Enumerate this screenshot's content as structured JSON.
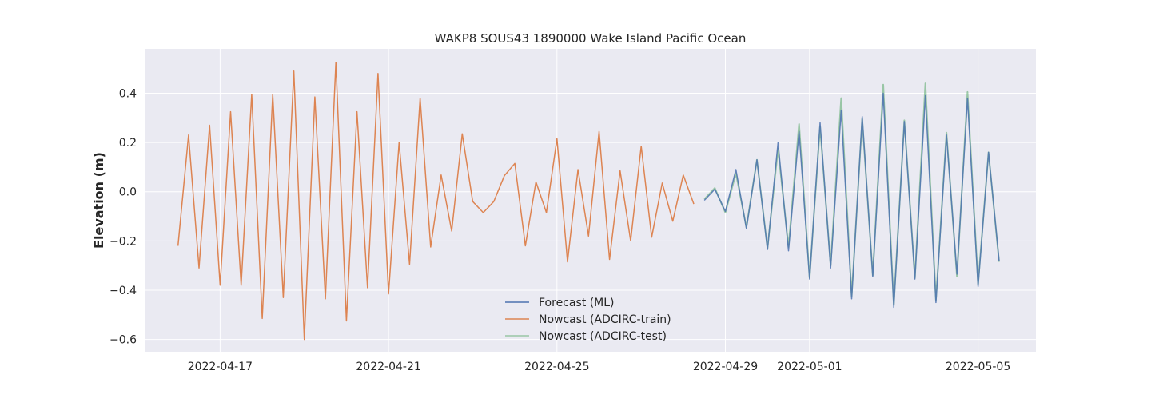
{
  "chart_data": {
    "type": "line",
    "title": "WAKP8 SOUS43 1890000 Wake Island Pacific Ocean",
    "xlabel": "",
    "ylabel": "Elevation (m)",
    "xlim": [
      "2022-04-15T05:00",
      "2022-05-06T09:00"
    ],
    "ylim": [
      -0.65,
      0.58
    ],
    "x_ticks": [
      "2022-04-17",
      "2022-04-21",
      "2022-04-25",
      "2022-04-29",
      "2022-05-01",
      "2022-05-05"
    ],
    "y_ticks": [
      -0.6,
      -0.4,
      -0.2,
      0.0,
      0.2,
      0.4
    ],
    "y_tick_labels": [
      "−0.6",
      "−0.4",
      "−0.2",
      "0.0",
      "0.2",
      "0.4"
    ],
    "grid": true,
    "legend_position": "bottom-center",
    "background_color": "#eaeaf2",
    "series": [
      {
        "name": "Nowcast (ADCIRC-train)",
        "color": "#dd8452",
        "x_start": "2022-04-16T00:00",
        "x_step_hours": 6,
        "y": [
          -0.22,
          0.23,
          -0.31,
          0.27,
          -0.38,
          0.325,
          -0.38,
          0.395,
          -0.515,
          0.395,
          -0.43,
          0.49,
          -0.6,
          0.385,
          -0.435,
          0.525,
          -0.525,
          0.325,
          -0.39,
          0.48,
          -0.415,
          0.2,
          -0.295,
          0.38,
          -0.225,
          0.068,
          -0.16,
          0.235,
          -0.04,
          -0.085,
          -0.04,
          0.065,
          0.115,
          -0.22,
          0.04,
          -0.085,
          0.215,
          -0.285,
          0.09,
          -0.18,
          0.245,
          -0.275,
          0.085,
          -0.2,
          0.185,
          -0.185,
          0.035,
          -0.12,
          0.068,
          -0.05
        ]
      },
      {
        "name": "Forecast (ML)",
        "color": "#4c72b0",
        "x_start": "2022-04-28T12:00",
        "x_step_hours": 6,
        "y": [
          -0.035,
          0.01,
          -0.08,
          0.09,
          -0.15,
          0.13,
          -0.235,
          0.2,
          -0.24,
          0.245,
          -0.355,
          0.28,
          -0.31,
          0.33,
          -0.435,
          0.305,
          -0.345,
          0.4,
          -0.47,
          0.285,
          -0.355,
          0.39,
          -0.45,
          0.23,
          -0.335,
          0.38,
          -0.385,
          0.16,
          -0.28
        ]
      },
      {
        "name": "Nowcast (ADCIRC-test)",
        "color": "#55a868",
        "x_start": "2022-04-28T12:00",
        "x_step_hours": 6,
        "y": [
          -0.03,
          0.015,
          -0.085,
          0.075,
          -0.145,
          0.13,
          -0.23,
          0.175,
          -0.225,
          0.275,
          -0.35,
          0.265,
          -0.3,
          0.38,
          -0.425,
          0.295,
          -0.34,
          0.435,
          -0.46,
          0.29,
          -0.35,
          0.44,
          -0.44,
          0.24,
          -0.345,
          0.405,
          -0.375,
          0.16,
          -0.285
        ]
      }
    ],
    "legend_order": [
      "Forecast (ML)",
      "Nowcast (ADCIRC-train)",
      "Nowcast (ADCIRC-test)"
    ]
  }
}
